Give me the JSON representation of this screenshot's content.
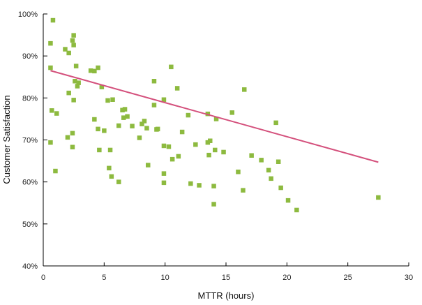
{
  "chart_data": {
    "type": "scatter",
    "xlabel": "MTTR (hours)",
    "ylabel": "Customer Satisfaction",
    "xlim": [
      0,
      30
    ],
    "ylim": [
      40,
      100
    ],
    "x_ticks": [
      0,
      5,
      10,
      15,
      20,
      25,
      30
    ],
    "y_ticks": [
      40,
      50,
      60,
      70,
      80,
      90,
      100
    ],
    "y_tick_labels": [
      "40%",
      "50%",
      "60%",
      "70%",
      "80%",
      "90%",
      "100%"
    ],
    "grid": false,
    "legend": "none",
    "colors": {
      "points": "#8dba3f",
      "trendline": "#d4507c",
      "axis": "#000000"
    },
    "trendline": {
      "x": [
        0.6,
        27.5
      ],
      "y": [
        86.5,
        64.7
      ]
    },
    "points": [
      [
        0.8,
        98.5
      ],
      [
        0.6,
        93.0
      ],
      [
        0.6,
        87.2
      ],
      [
        0.7,
        77.0
      ],
      [
        0.6,
        69.4
      ],
      [
        1.0,
        62.6
      ],
      [
        1.1,
        76.3
      ],
      [
        1.8,
        91.6
      ],
      [
        2.1,
        90.7
      ],
      [
        2.4,
        93.7
      ],
      [
        2.5,
        92.6
      ],
      [
        2.5,
        94.9
      ],
      [
        2.7,
        87.6
      ],
      [
        2.1,
        81.2
      ],
      [
        2.5,
        79.5
      ],
      [
        2.6,
        84.0
      ],
      [
        2.8,
        82.8
      ],
      [
        2.9,
        83.6
      ],
      [
        2.0,
        70.6
      ],
      [
        2.4,
        71.6
      ],
      [
        2.4,
        68.3
      ],
      [
        3.9,
        86.5
      ],
      [
        4.2,
        86.4
      ],
      [
        4.5,
        87.2
      ],
      [
        4.8,
        82.6
      ],
      [
        4.2,
        74.9
      ],
      [
        4.5,
        72.6
      ],
      [
        5.0,
        72.2
      ],
      [
        4.6,
        67.6
      ],
      [
        5.3,
        79.4
      ],
      [
        5.7,
        79.6
      ],
      [
        5.5,
        67.6
      ],
      [
        5.4,
        63.3
      ],
      [
        5.6,
        61.3
      ],
      [
        6.2,
        73.4
      ],
      [
        6.5,
        77.1
      ],
      [
        6.7,
        77.3
      ],
      [
        6.6,
        75.3
      ],
      [
        6.9,
        75.6
      ],
      [
        7.3,
        73.3
      ],
      [
        6.2,
        60.0
      ],
      [
        7.9,
        70.5
      ],
      [
        8.1,
        73.8
      ],
      [
        8.3,
        74.5
      ],
      [
        8.5,
        72.8
      ],
      [
        8.6,
        64.0
      ],
      [
        9.1,
        84.0
      ],
      [
        9.1,
        78.3
      ],
      [
        9.3,
        72.5
      ],
      [
        9.4,
        72.6
      ],
      [
        9.9,
        79.6
      ],
      [
        9.9,
        68.6
      ],
      [
        9.9,
        62.0
      ],
      [
        9.9,
        59.8
      ],
      [
        10.3,
        68.4
      ],
      [
        10.5,
        87.4
      ],
      [
        10.6,
        65.4
      ],
      [
        11.0,
        82.3
      ],
      [
        11.1,
        66.1
      ],
      [
        11.4,
        71.9
      ],
      [
        11.9,
        75.9
      ],
      [
        12.1,
        59.6
      ],
      [
        12.5,
        68.9
      ],
      [
        12.8,
        59.2
      ],
      [
        13.5,
        76.2
      ],
      [
        13.5,
        69.4
      ],
      [
        13.7,
        69.8
      ],
      [
        13.6,
        66.4
      ],
      [
        14.1,
        67.6
      ],
      [
        14.0,
        59.0
      ],
      [
        14.0,
        54.7
      ],
      [
        14.2,
        75.0
      ],
      [
        14.8,
        67.1
      ],
      [
        15.5,
        76.5
      ],
      [
        16.0,
        62.4
      ],
      [
        16.5,
        82.0
      ],
      [
        16.4,
        58.0
      ],
      [
        17.1,
        66.3
      ],
      [
        17.9,
        65.2
      ],
      [
        18.5,
        62.8
      ],
      [
        18.7,
        60.8
      ],
      [
        19.1,
        74.1
      ],
      [
        19.3,
        64.8
      ],
      [
        19.5,
        58.6
      ],
      [
        20.1,
        55.6
      ],
      [
        20.8,
        53.3
      ],
      [
        27.5,
        56.3
      ]
    ]
  }
}
